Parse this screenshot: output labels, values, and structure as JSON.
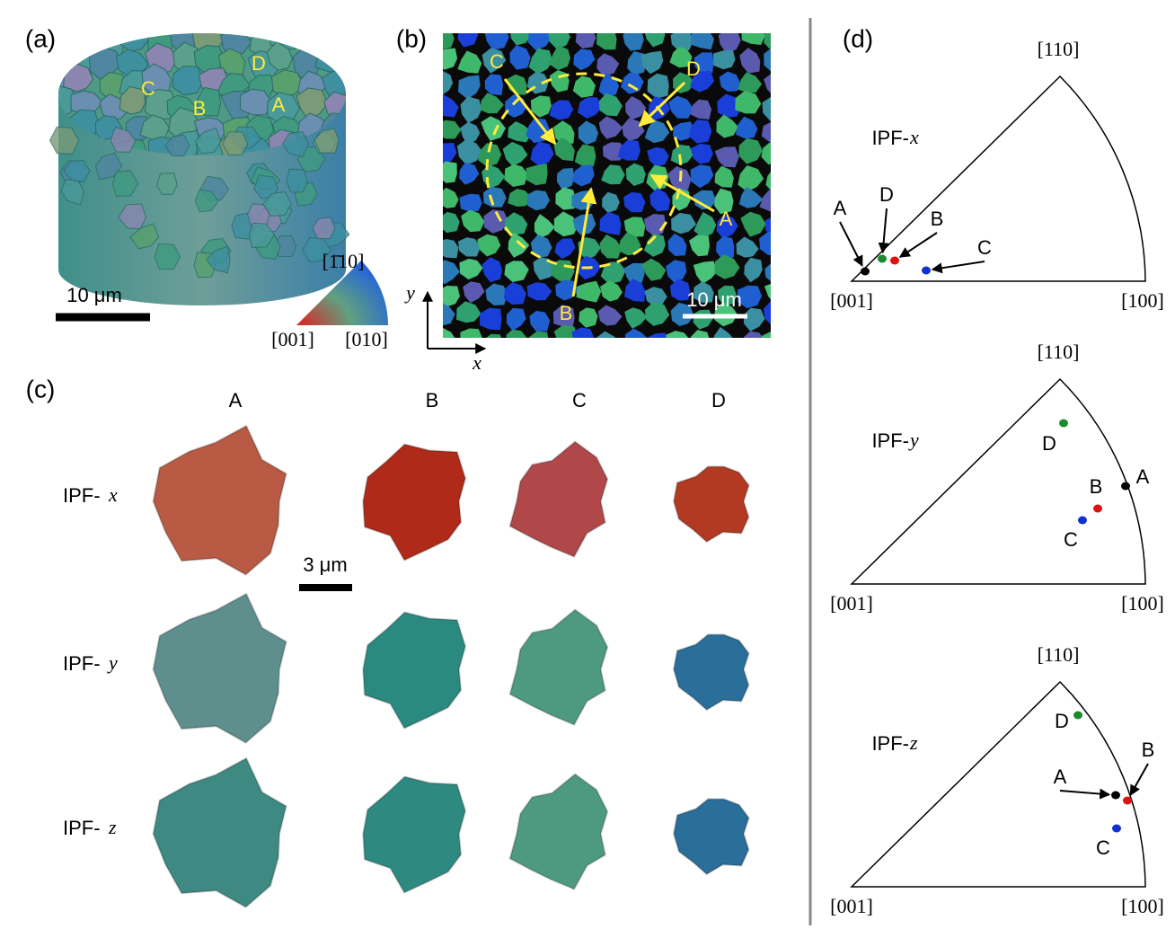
{
  "panel_a": {
    "label": "(a)",
    "grain_labels": [
      "D",
      "C",
      "B",
      "A"
    ],
    "scale_bar": "10 μm",
    "color_key": {
      "top": "[1̄10]",
      "left": "[001]",
      "right": "[010]"
    }
  },
  "panel_b": {
    "label": "(b)",
    "grain_labels": [
      "C",
      "D",
      "A",
      "B"
    ],
    "scale_bar": "10 μm",
    "axis_y": "y",
    "axis_x": "x"
  },
  "panel_c": {
    "label": "(c)",
    "columns": [
      "A",
      "B",
      "C",
      "D"
    ],
    "rows": [
      {
        "prefix": "IPF-",
        "axis": "x"
      },
      {
        "prefix": "IPF-",
        "axis": "y"
      },
      {
        "prefix": "IPF-",
        "axis": "z"
      }
    ],
    "scale_bar": "3 μm"
  },
  "panel_d": {
    "label": "(d)",
    "triangles": [
      {
        "prefix": "IPF-",
        "axis": "x",
        "apex": "[110]",
        "left": "[001]",
        "right": "[100]",
        "points": [
          "A",
          "D",
          "B",
          "C"
        ]
      },
      {
        "prefix": "IPF-",
        "axis": "y",
        "apex": "[110]",
        "left": "[001]",
        "right": "[100]",
        "points": [
          "D",
          "A",
          "B",
          "C"
        ]
      },
      {
        "prefix": "IPF-",
        "axis": "z",
        "apex": "[110]",
        "left": "[001]",
        "right": "[100]",
        "points": [
          "D",
          "A",
          "B",
          "C"
        ]
      }
    ]
  }
}
